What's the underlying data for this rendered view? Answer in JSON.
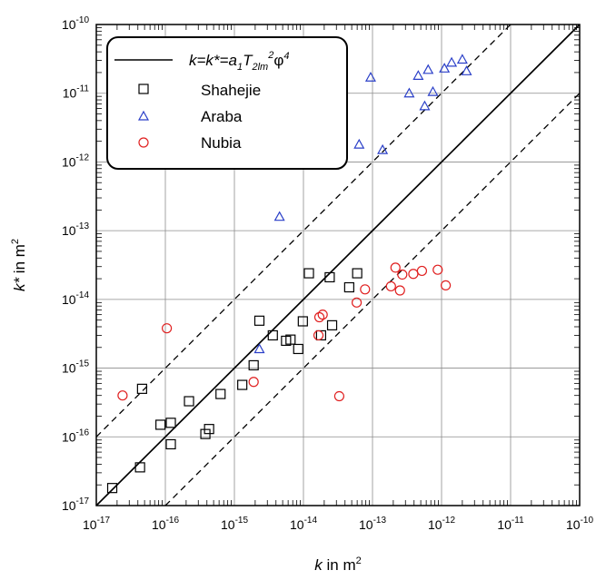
{
  "chart_data": {
    "type": "scatter",
    "scale": "log-log",
    "xlabel": {
      "var": "k",
      "rest": " in m",
      "sup": "2"
    },
    "ylabel": {
      "var": "k*",
      "rest": " in m",
      "sup": "2"
    },
    "xlim": [
      1e-17,
      1e-10
    ],
    "ylim": [
      1e-17,
      1e-10
    ],
    "x_tick_exponents": [
      "-17",
      "-16",
      "-15",
      "-14",
      "-13",
      "-12",
      "-11",
      "-10"
    ],
    "y_tick_exponents": [
      "-17",
      "-16",
      "-15",
      "-14",
      "-13",
      "-12",
      "-11",
      "-10"
    ],
    "tick_base": "10",
    "grid": true,
    "legend_position": "top-left",
    "reference_lines": [
      {
        "name": "k=k*=a1T2lm2φ4",
        "factor": 1,
        "style": "solid"
      },
      {
        "factor": 10,
        "style": "dashed"
      },
      {
        "factor": 0.1,
        "style": "dashed"
      }
    ],
    "legend_formula": {
      "lhs": "k=k*=a",
      "sub1": "1",
      "T": "T",
      "sub2": "2lm",
      "sup2": "2",
      "phi": "φ",
      "sup4": "4"
    },
    "series": [
      {
        "name": "Shahejie",
        "marker": "square",
        "color": "#000000",
        "points": [
          [
            1.7e-17,
            1.8e-17
          ],
          [
            4.3e-17,
            3.6e-17
          ],
          [
            4.6e-17,
            5e-16
          ],
          [
            8.5e-17,
            1.5e-16
          ],
          [
            1.2e-16,
            1.6e-16
          ],
          [
            1.2e-16,
            7.8e-17
          ],
          [
            2.2e-16,
            3.3e-16
          ],
          [
            3.8e-16,
            1.1e-16
          ],
          [
            4.3e-16,
            1.3e-16
          ],
          [
            6.3e-16,
            4.2e-16
          ],
          [
            1.3e-15,
            5.7e-16
          ],
          [
            1.9e-15,
            1.1e-15
          ],
          [
            2.3e-15,
            4.9e-15
          ],
          [
            3.6e-15,
            3e-15
          ],
          [
            5.6e-15,
            2.5e-15
          ],
          [
            6.5e-15,
            2.6e-15
          ],
          [
            8.4e-15,
            1.9e-15
          ],
          [
            9.8e-15,
            4.8e-15
          ],
          [
            1.2e-14,
            2.4e-14
          ],
          [
            1.8e-14,
            3e-15
          ],
          [
            2.4e-14,
            2.1e-14
          ],
          [
            2.6e-14,
            4.2e-15
          ],
          [
            4.6e-14,
            1.5e-14
          ],
          [
            6e-14,
            2.4e-14
          ]
        ]
      },
      {
        "name": "Araba",
        "marker": "triangle",
        "color": "#2a3fc8",
        "points": [
          [
            2.3e-15,
            1.9e-15
          ],
          [
            4.5e-15,
            1.6e-13
          ],
          [
            6.4e-14,
            1.8e-12
          ],
          [
            9.4e-14,
            1.7e-11
          ],
          [
            1.4e-13,
            1.5e-12
          ],
          [
            3.4e-13,
            1e-11
          ],
          [
            4.6e-13,
            1.8e-11
          ],
          [
            5.7e-13,
            6.5e-12
          ],
          [
            6.4e-13,
            2.2e-11
          ],
          [
            7.5e-13,
            1.05e-11
          ],
          [
            1.1e-12,
            2.3e-11
          ],
          [
            1.4e-12,
            2.8e-11
          ],
          [
            2e-12,
            3.1e-11
          ],
          [
            2.3e-12,
            2.1e-11
          ]
        ]
      },
      {
        "name": "Nubia",
        "marker": "circle",
        "color": "#e02020",
        "points": [
          [
            2.4e-17,
            4e-16
          ],
          [
            1.05e-16,
            3.8e-15
          ],
          [
            1.9e-15,
            6.3e-16
          ],
          [
            1.65e-14,
            3e-15
          ],
          [
            1.7e-14,
            5.5e-15
          ],
          [
            1.9e-14,
            6e-15
          ],
          [
            3.3e-14,
            3.9e-16
          ],
          [
            5.9e-14,
            9e-15
          ],
          [
            7.8e-14,
            1.4e-14
          ],
          [
            1.85e-13,
            1.55e-14
          ],
          [
            2.15e-13,
            2.9e-14
          ],
          [
            2.5e-13,
            1.35e-14
          ],
          [
            2.7e-13,
            2.3e-14
          ],
          [
            3.9e-13,
            2.35e-14
          ],
          [
            5.2e-13,
            2.6e-14
          ],
          [
            8.8e-13,
            2.7e-14
          ],
          [
            1.15e-12,
            1.6e-14
          ]
        ]
      }
    ]
  }
}
